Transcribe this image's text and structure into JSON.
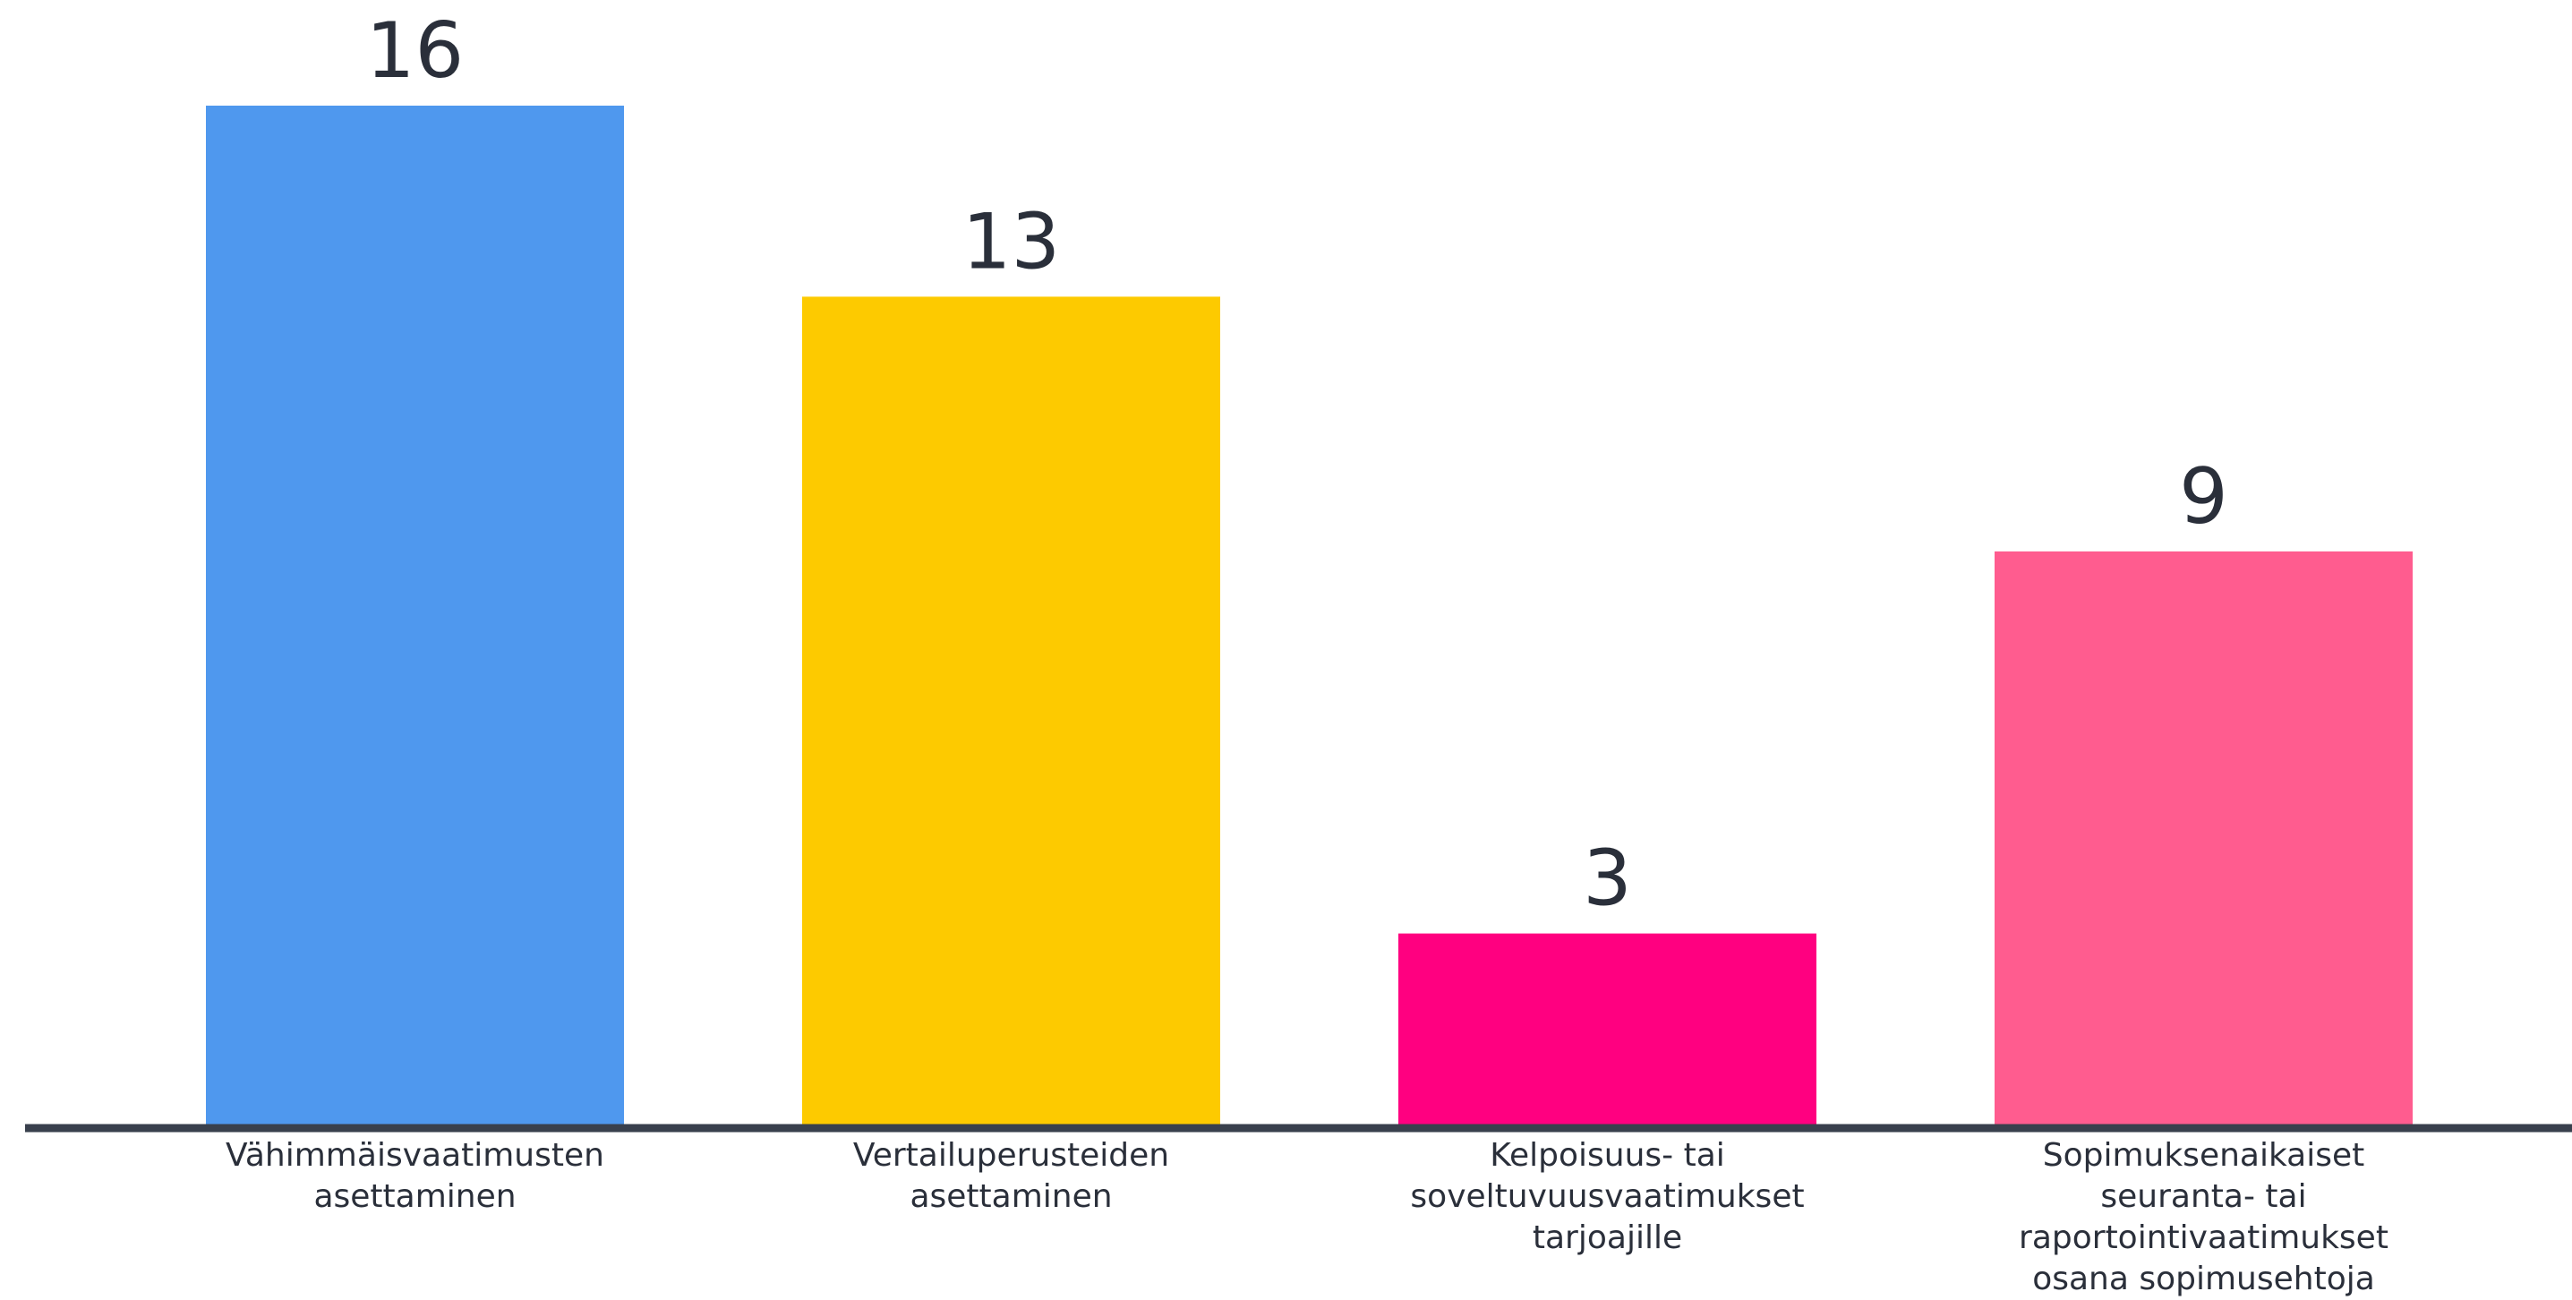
{
  "chart_data": {
    "type": "bar",
    "categories": [
      [
        "Vähimmäisvaatimusten",
        "asettaminen"
      ],
      [
        "Vertailuperusteiden",
        "asettaminen"
      ],
      [
        "Kelpoisuus- tai",
        "soveltuvuusvaatimukset",
        "tarjoajille"
      ],
      [
        "Sopimuksenaikaiset",
        "seuranta- tai",
        "raportointivaatimukset",
        "osana sopimusehtoja"
      ]
    ],
    "values": [
      16,
      13,
      3,
      9
    ],
    "value_labels": [
      "16",
      "13",
      "3",
      "9"
    ],
    "colors": [
      "#4f98ee",
      "#fdca00",
      "#ff0080",
      "#ff5c8f"
    ],
    "title": "",
    "xlabel": "",
    "ylabel": "",
    "ylim": [
      0,
      16
    ],
    "grid": false,
    "legend": "none",
    "data_labels": "above"
  },
  "axis_color": "#39404d"
}
